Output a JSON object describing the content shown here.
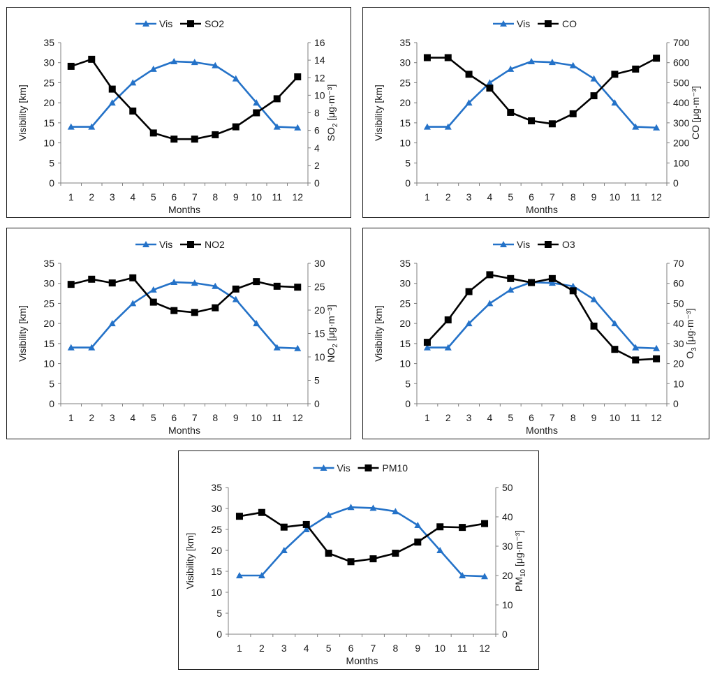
{
  "colors": {
    "vis": "#2472c8",
    "pollutant": "#000000",
    "axis": "#7f7f7f"
  },
  "chart_data": [
    {
      "type": "line",
      "id": "so2",
      "categories": [
        "1",
        "2",
        "3",
        "4",
        "5",
        "6",
        "7",
        "8",
        "9",
        "10",
        "11",
        "12"
      ],
      "xlabel": "Months",
      "ylabel": "Visibility [km]",
      "ylim": [
        0,
        35
      ],
      "yticks": [
        "0",
        "5",
        "10",
        "15",
        "20",
        "25",
        "30",
        "35"
      ],
      "y2_label": {
        "main": "SO",
        "sub": "2",
        "unit": " [μg·m⁻³]"
      },
      "y2lim": [
        0,
        16
      ],
      "y2ticks": [
        "0",
        "2",
        "4",
        "6",
        "8",
        "10",
        "12",
        "14",
        "16"
      ],
      "series": [
        {
          "name": "Vis",
          "axis": "left",
          "marker": "triangle",
          "values": [
            14.0,
            14.0,
            20.0,
            25.0,
            28.4,
            30.3,
            30.1,
            29.3,
            26.0,
            20.0,
            14.0,
            13.8
          ]
        },
        {
          "name": "SO2",
          "axis": "right",
          "marker": "square",
          "values": [
            13.3,
            14.1,
            10.7,
            8.2,
            5.7,
            5.0,
            5.0,
            5.5,
            6.4,
            8.0,
            9.6,
            12.1
          ]
        }
      ]
    },
    {
      "type": "line",
      "id": "co",
      "categories": [
        "1",
        "2",
        "3",
        "4",
        "5",
        "6",
        "7",
        "8",
        "9",
        "10",
        "11",
        "12"
      ],
      "xlabel": "Months",
      "ylabel": "Visibility [km]",
      "ylim": [
        0,
        35
      ],
      "yticks": [
        "0",
        "5",
        "10",
        "15",
        "20",
        "25",
        "30",
        "35"
      ],
      "y2_label": {
        "main": "CO",
        "sub": "",
        "unit": " [μg·m⁻³]"
      },
      "y2lim": [
        0,
        700
      ],
      "y2ticks": [
        "0",
        "100",
        "200",
        "300",
        "400",
        "500",
        "600",
        "700"
      ],
      "series": [
        {
          "name": "Vis",
          "axis": "left",
          "marker": "triangle",
          "values": [
            14.0,
            14.0,
            20.0,
            25.0,
            28.4,
            30.3,
            30.1,
            29.3,
            26.0,
            20.0,
            14.0,
            13.8
          ]
        },
        {
          "name": "CO",
          "axis": "right",
          "marker": "square",
          "values": [
            625,
            625,
            542,
            473,
            352,
            310,
            295,
            345,
            435,
            542,
            568,
            622
          ]
        }
      ]
    },
    {
      "type": "line",
      "id": "no2",
      "categories": [
        "1",
        "2",
        "3",
        "4",
        "5",
        "6",
        "7",
        "8",
        "9",
        "10",
        "11",
        "12"
      ],
      "xlabel": "Months",
      "ylabel": "Visibility [km]",
      "ylim": [
        0,
        35
      ],
      "yticks": [
        "0",
        "5",
        "10",
        "15",
        "20",
        "25",
        "30",
        "35"
      ],
      "y2_label": {
        "main": "NO",
        "sub": "2",
        "unit": " [μg·m⁻³]"
      },
      "y2lim": [
        0,
        30
      ],
      "y2ticks": [
        "0",
        "5",
        "10",
        "15",
        "20",
        "25",
        "30"
      ],
      "series": [
        {
          "name": "Vis",
          "axis": "left",
          "marker": "triangle",
          "values": [
            14.0,
            14.0,
            20.0,
            25.0,
            28.4,
            30.3,
            30.1,
            29.3,
            26.0,
            20.0,
            14.0,
            13.8
          ]
        },
        {
          "name": "NO2",
          "axis": "right",
          "marker": "square",
          "values": [
            25.5,
            26.6,
            25.8,
            26.9,
            21.7,
            19.9,
            19.5,
            20.5,
            24.5,
            26.1,
            25.1,
            24.9
          ]
        }
      ]
    },
    {
      "type": "line",
      "id": "o3",
      "categories": [
        "1",
        "2",
        "3",
        "4",
        "5",
        "6",
        "7",
        "8",
        "9",
        "10",
        "11",
        "12"
      ],
      "xlabel": "Months",
      "ylabel": "Visibility [km]",
      "ylim": [
        0,
        35
      ],
      "yticks": [
        "0",
        "5",
        "10",
        "15",
        "20",
        "25",
        "30",
        "35"
      ],
      "y2_label": {
        "main": "O",
        "sub": "3",
        "unit": " [μg·m⁻³]"
      },
      "y2lim": [
        0,
        70
      ],
      "y2ticks": [
        "0",
        "10",
        "20",
        "30",
        "40",
        "50",
        "60",
        "70"
      ],
      "series": [
        {
          "name": "Vis",
          "axis": "left",
          "marker": "triangle",
          "values": [
            14.0,
            14.0,
            20.0,
            25.0,
            28.4,
            30.3,
            30.1,
            29.3,
            26.0,
            20.0,
            14.0,
            13.8
          ]
        },
        {
          "name": "O3",
          "axis": "right",
          "marker": "square",
          "values": [
            30.6,
            41.8,
            55.9,
            64.3,
            62.4,
            60.4,
            62.4,
            56.3,
            38.7,
            27.1,
            21.8,
            22.4
          ]
        }
      ]
    },
    {
      "type": "line",
      "id": "pm10",
      "categories": [
        "1",
        "2",
        "3",
        "4",
        "5",
        "6",
        "7",
        "8",
        "9",
        "10",
        "11",
        "12"
      ],
      "xlabel": "Months",
      "ylabel": "Visibility [km]",
      "ylim": [
        0,
        35
      ],
      "yticks": [
        "0",
        "5",
        "10",
        "15",
        "20",
        "25",
        "30",
        "35"
      ],
      "y2_label": {
        "main": "PM",
        "sub": "10",
        "unit": " [μg·m⁻³]"
      },
      "y2lim": [
        0,
        50
      ],
      "y2ticks": [
        "0",
        "10",
        "20",
        "30",
        "40",
        "50"
      ],
      "series": [
        {
          "name": "Vis",
          "axis": "left",
          "marker": "triangle",
          "values": [
            14.0,
            14.0,
            20.0,
            25.0,
            28.4,
            30.3,
            30.1,
            29.3,
            26.0,
            20.0,
            14.0,
            13.8
          ]
        },
        {
          "name": "PM10",
          "axis": "right",
          "marker": "square",
          "values": [
            40.2,
            41.5,
            36.5,
            37.4,
            27.6,
            24.7,
            25.7,
            27.6,
            31.4,
            36.6,
            36.4,
            37.7
          ]
        }
      ]
    }
  ]
}
